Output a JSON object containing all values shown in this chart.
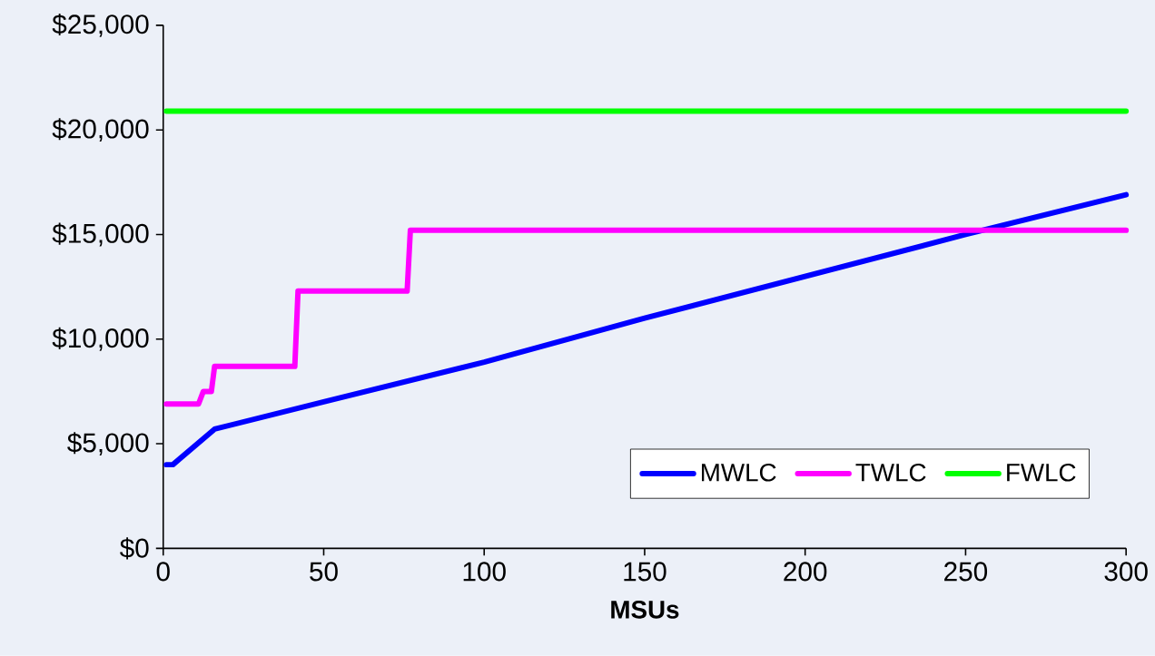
{
  "chart_data": {
    "type": "line",
    "xlabel": "MSUs",
    "xlim": [
      0,
      300
    ],
    "xticks": [
      0,
      50,
      100,
      150,
      200,
      250,
      300
    ],
    "ylim": [
      0,
      25000
    ],
    "yticks": [
      {
        "value": 0,
        "label": "$0"
      },
      {
        "value": 5000,
        "label": "$5,000"
      },
      {
        "value": 10000,
        "label": "$10,000"
      },
      {
        "value": 15000,
        "label": "$15,000"
      },
      {
        "value": 20000,
        "label": "$20,000"
      },
      {
        "value": 25000,
        "label": "$25,000"
      }
    ],
    "grid": false,
    "legend": "bottom right",
    "marker": "none",
    "line_style": "solid",
    "series": [
      {
        "name": "MWLC",
        "color": "#0000ff",
        "x": [
          1,
          3,
          16,
          50,
          100,
          150,
          200,
          250,
          300
        ],
        "values": [
          4000,
          4000,
          5700,
          7000,
          8900,
          11000,
          13000,
          15000,
          16900
        ]
      },
      {
        "name": "TWLC",
        "color": "#ff00ff",
        "x": [
          1,
          11,
          12.5,
          15,
          16,
          41,
          42,
          76,
          77,
          300
        ],
        "values": [
          6900,
          6900,
          7500,
          7500,
          8700,
          8700,
          12300,
          12300,
          15200,
          15200
        ]
      },
      {
        "name": "FWLC",
        "color": "#00ff00",
        "x": [
          1,
          300
        ],
        "values": [
          20900,
          20900
        ]
      }
    ]
  }
}
